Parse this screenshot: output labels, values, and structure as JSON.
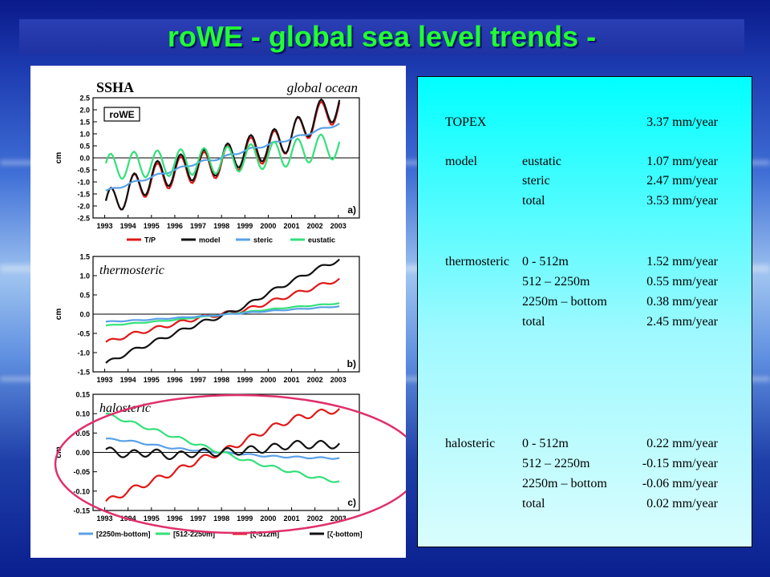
{
  "slide": {
    "title": "roWE - global sea level trends -"
  },
  "figure": {
    "header_left": "SSHA",
    "header_right": "global ocean",
    "model_label": "roWE",
    "ylabel": "cm",
    "x_ticks": [
      "1993",
      "1994",
      "1995",
      "1996",
      "1997",
      "1998",
      "1999",
      "2000",
      "2001",
      "2002",
      "2003"
    ],
    "panels": [
      {
        "tag": "a)",
        "italic_title": "",
        "y_ticks": [
          "2.5",
          "2.0",
          "1.5",
          "1.0",
          "0.5",
          "0.0",
          "-0.5",
          "-1.0",
          "-1.5",
          "-2.0",
          "-2.5"
        ]
      },
      {
        "tag": "b)",
        "italic_title": "thermosteric",
        "y_ticks": [
          "1.5",
          "1.0",
          "0.5",
          "0.0",
          "-0.5",
          "-1.0",
          "-1.5"
        ]
      },
      {
        "tag": "c)",
        "italic_title": "halosteric",
        "y_ticks": [
          "0.15",
          "0.10",
          "0.05",
          "0.00",
          "-0.05",
          "-0.10",
          "-0.15"
        ]
      }
    ],
    "legend_top": [
      {
        "label": "T/P",
        "color": "#e01818"
      },
      {
        "label": "model",
        "color": "#111111"
      },
      {
        "label": "steric",
        "color": "#5aa0e8"
      },
      {
        "label": "eustatic",
        "color": "#33e07a"
      }
    ],
    "legend_bottom": [
      {
        "label": "[2250m-bottom]",
        "color": "#5aa0e8"
      },
      {
        "label": "[512-2250m]",
        "color": "#33e07a"
      },
      {
        "label": "[ζ-512m]",
        "color": "#e01818"
      },
      {
        "label": "[ζ-bottom]",
        "color": "#111111"
      }
    ],
    "highlight_color": "#e0306a"
  },
  "chart_data": [
    {
      "type": "line",
      "title": "SSHA",
      "subtitle": "global ocean",
      "ylabel": "cm",
      "xlim": [
        1992.5,
        2003.9
      ],
      "ylim": [
        -2.5,
        2.5
      ],
      "x": [
        1993,
        1994,
        1995,
        1996,
        1997,
        1998,
        1999,
        2000,
        2001,
        2002,
        2003
      ],
      "series": [
        {
          "name": "T/P",
          "color": "#e01818",
          "values": [
            -2.0,
            -1.4,
            -0.9,
            -0.6,
            -0.4,
            -0.2,
            0.2,
            0.4,
            0.9,
            1.6,
            2.1
          ],
          "seasonal": 0.6
        },
        {
          "name": "model",
          "color": "#111111",
          "values": [
            -2.0,
            -1.4,
            -0.8,
            -0.5,
            -0.3,
            -0.1,
            0.3,
            0.5,
            0.9,
            1.7,
            2.2
          ],
          "seasonal": 0.6
        },
        {
          "name": "steric",
          "color": "#5aa0e8",
          "values": [
            -1.4,
            -1.1,
            -0.8,
            -0.5,
            -0.2,
            0.0,
            0.3,
            0.55,
            0.8,
            1.1,
            1.4
          ],
          "seasonal": 0.05
        },
        {
          "name": "eustatic",
          "color": "#33e07a",
          "values": [
            -0.4,
            -0.3,
            -0.25,
            -0.2,
            -0.15,
            -0.1,
            0.0,
            0.1,
            0.2,
            0.4,
            0.5
          ],
          "seasonal": 0.55
        }
      ]
    },
    {
      "type": "line",
      "title": "thermosteric",
      "ylabel": "cm",
      "xlim": [
        1992.5,
        2003.9
      ],
      "ylim": [
        -1.5,
        1.5
      ],
      "x": [
        1993,
        1994,
        1995,
        1996,
        1997,
        1998,
        1999,
        2000,
        2001,
        2002,
        2003
      ],
      "series": [
        {
          "name": "0 - 512m",
          "color": "#e01818",
          "values": [
            -0.75,
            -0.55,
            -0.4,
            -0.25,
            -0.1,
            0.0,
            0.1,
            0.3,
            0.5,
            0.7,
            0.9
          ],
          "seasonal": 0.05
        },
        {
          "name": "model",
          "color": "#111111",
          "values": [
            -1.3,
            -1.0,
            -0.75,
            -0.5,
            -0.25,
            -0.05,
            0.2,
            0.55,
            0.85,
            1.15,
            1.4
          ],
          "seasonal": 0.05
        },
        {
          "name": "512 – 2250m",
          "color": "#33e07a",
          "values": [
            -0.3,
            -0.25,
            -0.2,
            -0.15,
            -0.08,
            -0.02,
            0.05,
            0.12,
            0.18,
            0.23,
            0.28
          ],
          "seasonal": 0.01
        },
        {
          "name": "2250m – bottom",
          "color": "#5aa0e8",
          "values": [
            -0.2,
            -0.17,
            -0.14,
            -0.1,
            -0.06,
            -0.02,
            0.03,
            0.08,
            0.12,
            0.16,
            0.2
          ],
          "seasonal": 0.01
        }
      ]
    },
    {
      "type": "line",
      "title": "halosteric",
      "ylabel": "cm",
      "xlim": [
        1992.5,
        2003.9
      ],
      "ylim": [
        -0.15,
        0.15
      ],
      "x": [
        1993,
        1994,
        1995,
        1996,
        1997,
        1998,
        1999,
        2000,
        2001,
        2002,
        2003
      ],
      "series": [
        {
          "name": "[2250m-bottom]",
          "color": "#5aa0e8",
          "values": [
            0.035,
            0.03,
            0.02,
            0.01,
            0.005,
            0.0,
            -0.005,
            -0.01,
            -0.012,
            -0.014,
            -0.015
          ],
          "seasonal": 0.002
        },
        {
          "name": "[512-2250m]",
          "color": "#33e07a",
          "values": [
            0.1,
            0.08,
            0.06,
            0.04,
            0.02,
            0.0,
            -0.02,
            -0.035,
            -0.05,
            -0.065,
            -0.075
          ],
          "seasonal": 0.004
        },
        {
          "name": "[ζ-512m]",
          "color": "#e01818",
          "values": [
            -0.13,
            -0.1,
            -0.075,
            -0.05,
            -0.02,
            0.0,
            0.03,
            0.06,
            0.085,
            0.1,
            0.11
          ],
          "seasonal": 0.008
        },
        {
          "name": "[ζ-bottom]",
          "color": "#111111",
          "values": [
            0.005,
            -0.005,
            0.0,
            -0.01,
            0.0,
            0.0,
            0.005,
            0.01,
            0.02,
            0.02,
            0.02
          ],
          "seasonal": 0.01
        }
      ]
    }
  ],
  "table": {
    "rows": [
      {
        "c1": "TOPEX",
        "c2": "",
        "c3": "3.37 mm/year"
      },
      {
        "c1": "model",
        "c2": "eustatic",
        "c3": "1.07 mm/year"
      },
      {
        "c1": "",
        "c2": "steric",
        "c3": "2.47 mm/year"
      },
      {
        "c1": "",
        "c2": "total",
        "c3": "3.53 mm/year"
      },
      {
        "c1": "thermosteric",
        "c2": "0 - 512m",
        "c3": "1.52 mm/year"
      },
      {
        "c1": "",
        "c2": "512 – 2250m",
        "c3": "0.55 mm/year"
      },
      {
        "c1": "",
        "c2": "2250m – bottom",
        "c3": "0.38 mm/year"
      },
      {
        "c1": "",
        "c2": "total",
        "c3": "2.45 mm/year"
      },
      {
        "c1": "halosteric",
        "c2": "0 - 512m",
        "c3": "0.22 mm/year"
      },
      {
        "c1": "",
        "c2": "512 – 2250m",
        "c3": "-0.15 mm/year"
      },
      {
        "c1": "",
        "c2": "2250m – bottom",
        "c3": "-0.06 mm/year"
      },
      {
        "c1": "",
        "c2": "total",
        "c3": "0.02 mm/year"
      }
    ]
  }
}
